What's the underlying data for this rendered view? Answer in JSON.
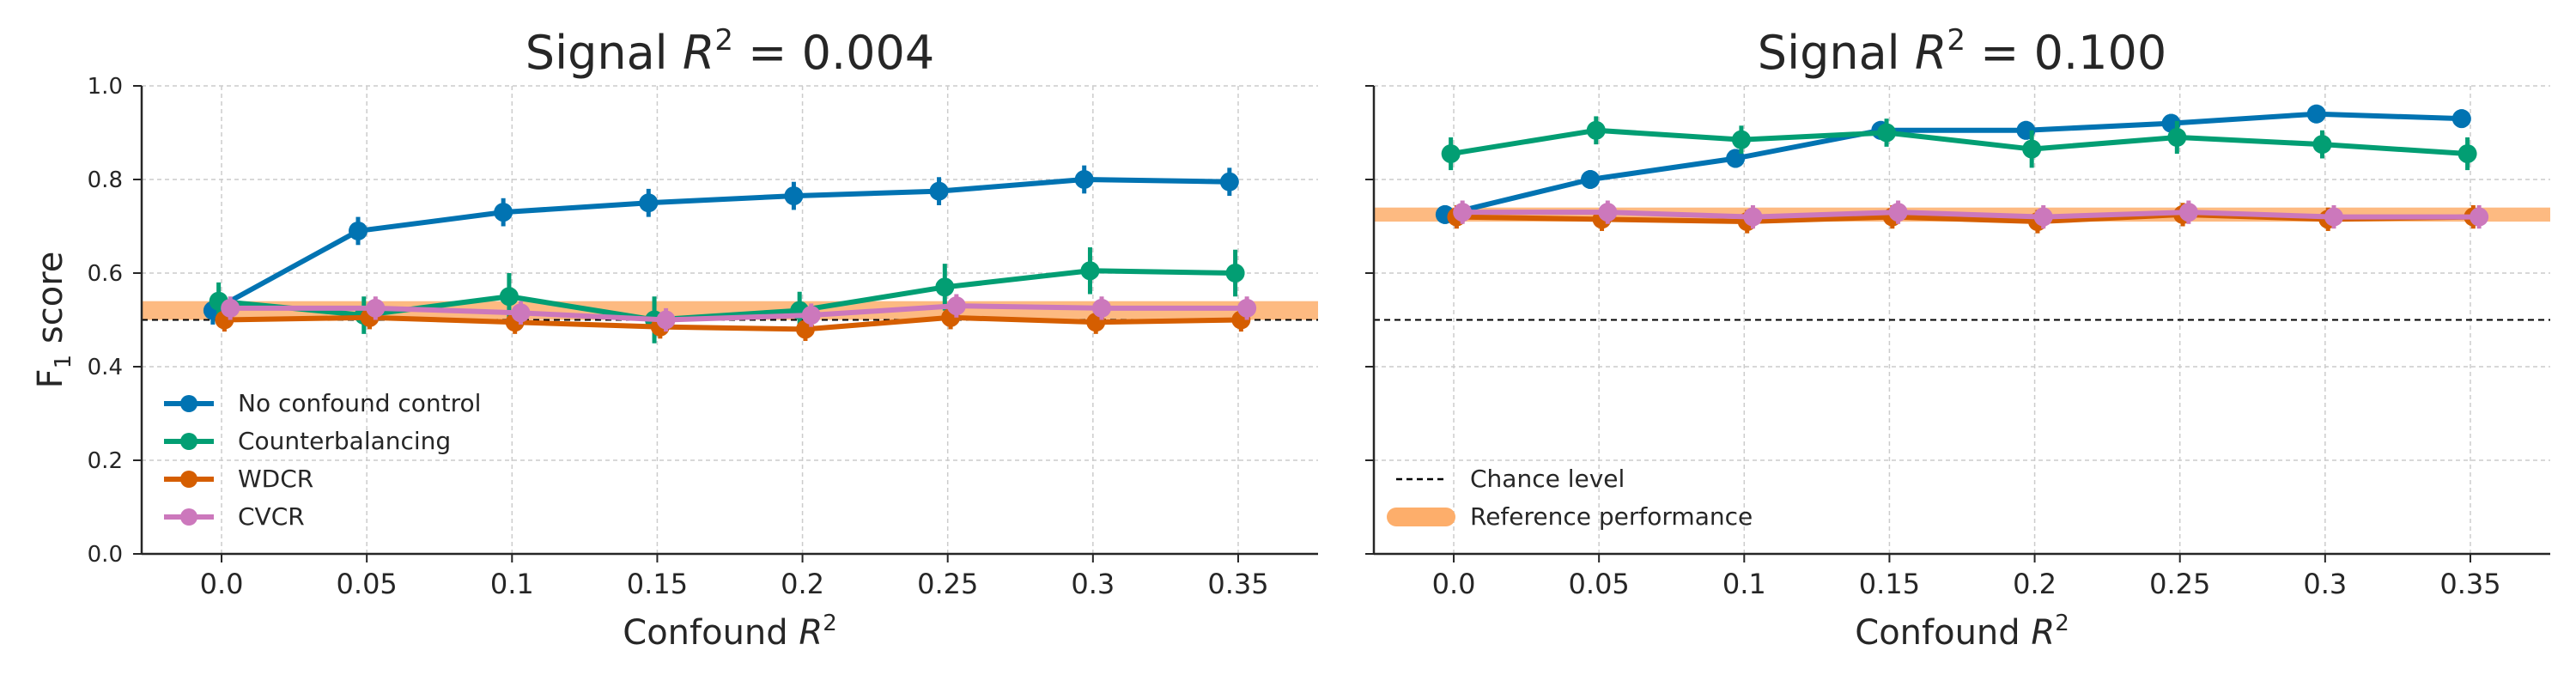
{
  "chart_data": [
    {
      "type": "line",
      "title_prefix": "Signal ",
      "title_math": "R",
      "title_sup": "2",
      "title_suffix": " = 0.004",
      "xlabel": "Confound",
      "xlabel_math": "R",
      "xlabel_sup": "2",
      "ylabel": "F",
      "ylabel_sub": "1",
      "ylabel_suffix": " score",
      "x": [
        0.0,
        0.05,
        0.1,
        0.15,
        0.2,
        0.25,
        0.3,
        0.35
      ],
      "xtick_labels": [
        "0.0",
        "0.05",
        "0.1",
        "0.15",
        "0.2",
        "0.25",
        "0.3",
        "0.35"
      ],
      "ylim": [
        0.0,
        1.0
      ],
      "yticks": [
        0.0,
        0.2,
        0.4,
        0.6,
        0.8,
        1.0
      ],
      "ytick_labels": [
        "0.0",
        "0.2",
        "0.4",
        "0.6",
        "0.8",
        "1.0"
      ],
      "grid": true,
      "chance_level": 0.5,
      "reference_band": [
        0.5,
        0.54
      ],
      "legend_position": "lower-left",
      "series": [
        {
          "name": "No confound control",
          "color": "#0173b2",
          "values": [
            0.52,
            0.69,
            0.73,
            0.75,
            0.765,
            0.775,
            0.8,
            0.795
          ],
          "err": [
            0.03,
            0.03,
            0.03,
            0.03,
            0.03,
            0.03,
            0.03,
            0.03
          ]
        },
        {
          "name": "Counterbalancing",
          "color": "#029e73",
          "values": [
            0.54,
            0.51,
            0.55,
            0.5,
            0.52,
            0.57,
            0.605,
            0.6
          ],
          "err": [
            0.04,
            0.04,
            0.05,
            0.05,
            0.04,
            0.05,
            0.05,
            0.05
          ]
        },
        {
          "name": "WDCR",
          "color": "#d55e00",
          "values": [
            0.5,
            0.505,
            0.495,
            0.485,
            0.48,
            0.505,
            0.495,
            0.5
          ],
          "err": [
            0.025,
            0.025,
            0.025,
            0.025,
            0.025,
            0.025,
            0.025,
            0.025
          ]
        },
        {
          "name": "CVCR",
          "color": "#cc78bc",
          "values": [
            0.525,
            0.525,
            0.515,
            0.5,
            0.51,
            0.53,
            0.525,
            0.525
          ],
          "err": [
            0.025,
            0.025,
            0.025,
            0.025,
            0.025,
            0.025,
            0.025,
            0.025
          ]
        }
      ]
    },
    {
      "type": "line",
      "title_prefix": "Signal ",
      "title_math": "R",
      "title_sup": "2",
      "title_suffix": " = 0.100",
      "xlabel": "Confound",
      "xlabel_math": "R",
      "xlabel_sup": "2",
      "x": [
        0.0,
        0.05,
        0.1,
        0.15,
        0.2,
        0.25,
        0.3,
        0.35
      ],
      "xtick_labels": [
        "0.0",
        "0.05",
        "0.1",
        "0.15",
        "0.2",
        "0.25",
        "0.3",
        "0.35"
      ],
      "ylim": [
        0.0,
        1.0
      ],
      "yticks": [
        0.0,
        0.2,
        0.4,
        0.6,
        0.8,
        1.0
      ],
      "grid": true,
      "chance_level": 0.5,
      "reference_band": [
        0.71,
        0.74
      ],
      "legend_position": "lower-left",
      "legend": [
        {
          "label": "Chance level",
          "style": "dashed",
          "color": "#000000"
        },
        {
          "label": "Reference performance",
          "style": "band",
          "color": "#fdae6b"
        }
      ],
      "series": [
        {
          "name": "No confound control",
          "color": "#0173b2",
          "values": [
            0.725,
            0.8,
            0.845,
            0.905,
            0.905,
            0.92,
            0.94,
            0.93
          ],
          "err": [
            0.02,
            0.02,
            0.02,
            0.02,
            0.02,
            0.02,
            0.02,
            0.02
          ]
        },
        {
          "name": "Counterbalancing",
          "color": "#029e73",
          "values": [
            0.855,
            0.905,
            0.885,
            0.9,
            0.865,
            0.89,
            0.875,
            0.855
          ],
          "err": [
            0.035,
            0.03,
            0.03,
            0.03,
            0.04,
            0.035,
            0.03,
            0.035
          ]
        },
        {
          "name": "WDCR",
          "color": "#d55e00",
          "values": [
            0.72,
            0.715,
            0.71,
            0.72,
            0.71,
            0.725,
            0.715,
            0.72
          ],
          "err": [
            0.025,
            0.025,
            0.025,
            0.025,
            0.025,
            0.025,
            0.025,
            0.025
          ]
        },
        {
          "name": "CVCR",
          "color": "#cc78bc",
          "values": [
            0.73,
            0.73,
            0.72,
            0.73,
            0.72,
            0.73,
            0.72,
            0.72
          ],
          "err": [
            0.025,
            0.025,
            0.025,
            0.025,
            0.025,
            0.025,
            0.025,
            0.025
          ]
        }
      ]
    }
  ]
}
